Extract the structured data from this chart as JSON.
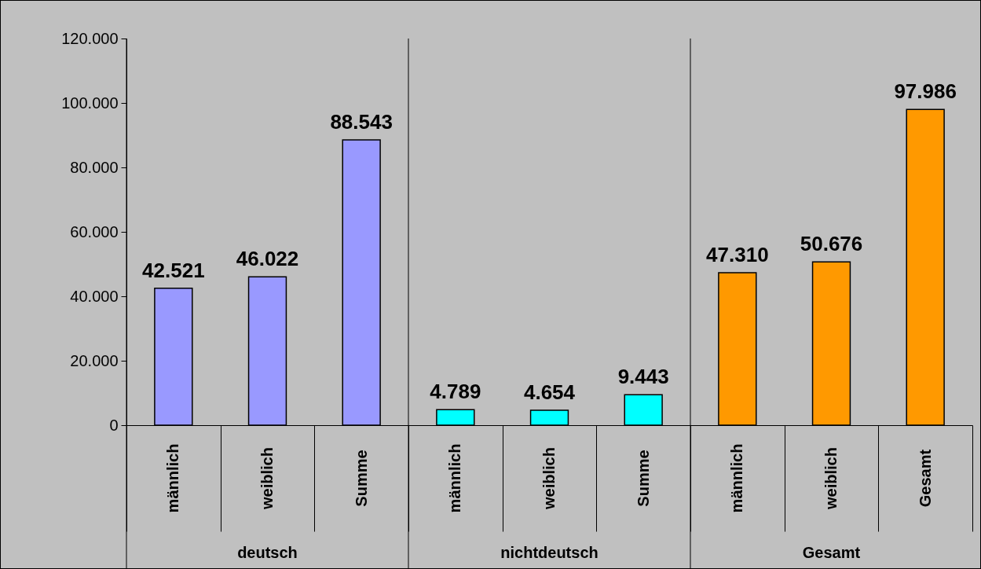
{
  "chart_data": {
    "type": "bar",
    "categories": [
      "männlich",
      "weiblich",
      "Summe",
      "männlich",
      "weiblich",
      "Summe",
      "männlich",
      "weiblich",
      "Gesamt"
    ],
    "values": [
      42521,
      46022,
      88543,
      4789,
      4654,
      9443,
      47310,
      50676,
      97986
    ],
    "value_labels": [
      "42.521",
      "46.022",
      "88.543",
      "4.789",
      "4.654",
      "9.443",
      "47.310",
      "50.676",
      "97.986"
    ],
    "colors": [
      "#9999ff",
      "#9999ff",
      "#9999ff",
      "#00ffff",
      "#00ffff",
      "#00ffff",
      "#ff9900",
      "#ff9900",
      "#ff9900"
    ],
    "ylim": [
      0,
      120000
    ],
    "yticks": [
      {
        "value": 0,
        "label": "0"
      },
      {
        "value": 20000,
        "label": "20.000"
      },
      {
        "value": 40000,
        "label": "40.000"
      },
      {
        "value": 60000,
        "label": "60.000"
      },
      {
        "value": 80000,
        "label": "80.000"
      },
      {
        "value": 100000,
        "label": "100.000"
      },
      {
        "value": 120000,
        "label": "120.000"
      }
    ],
    "grid": false,
    "annotations": [
      "deutsch",
      "nichtdeutsch",
      "Gesamt"
    ]
  }
}
